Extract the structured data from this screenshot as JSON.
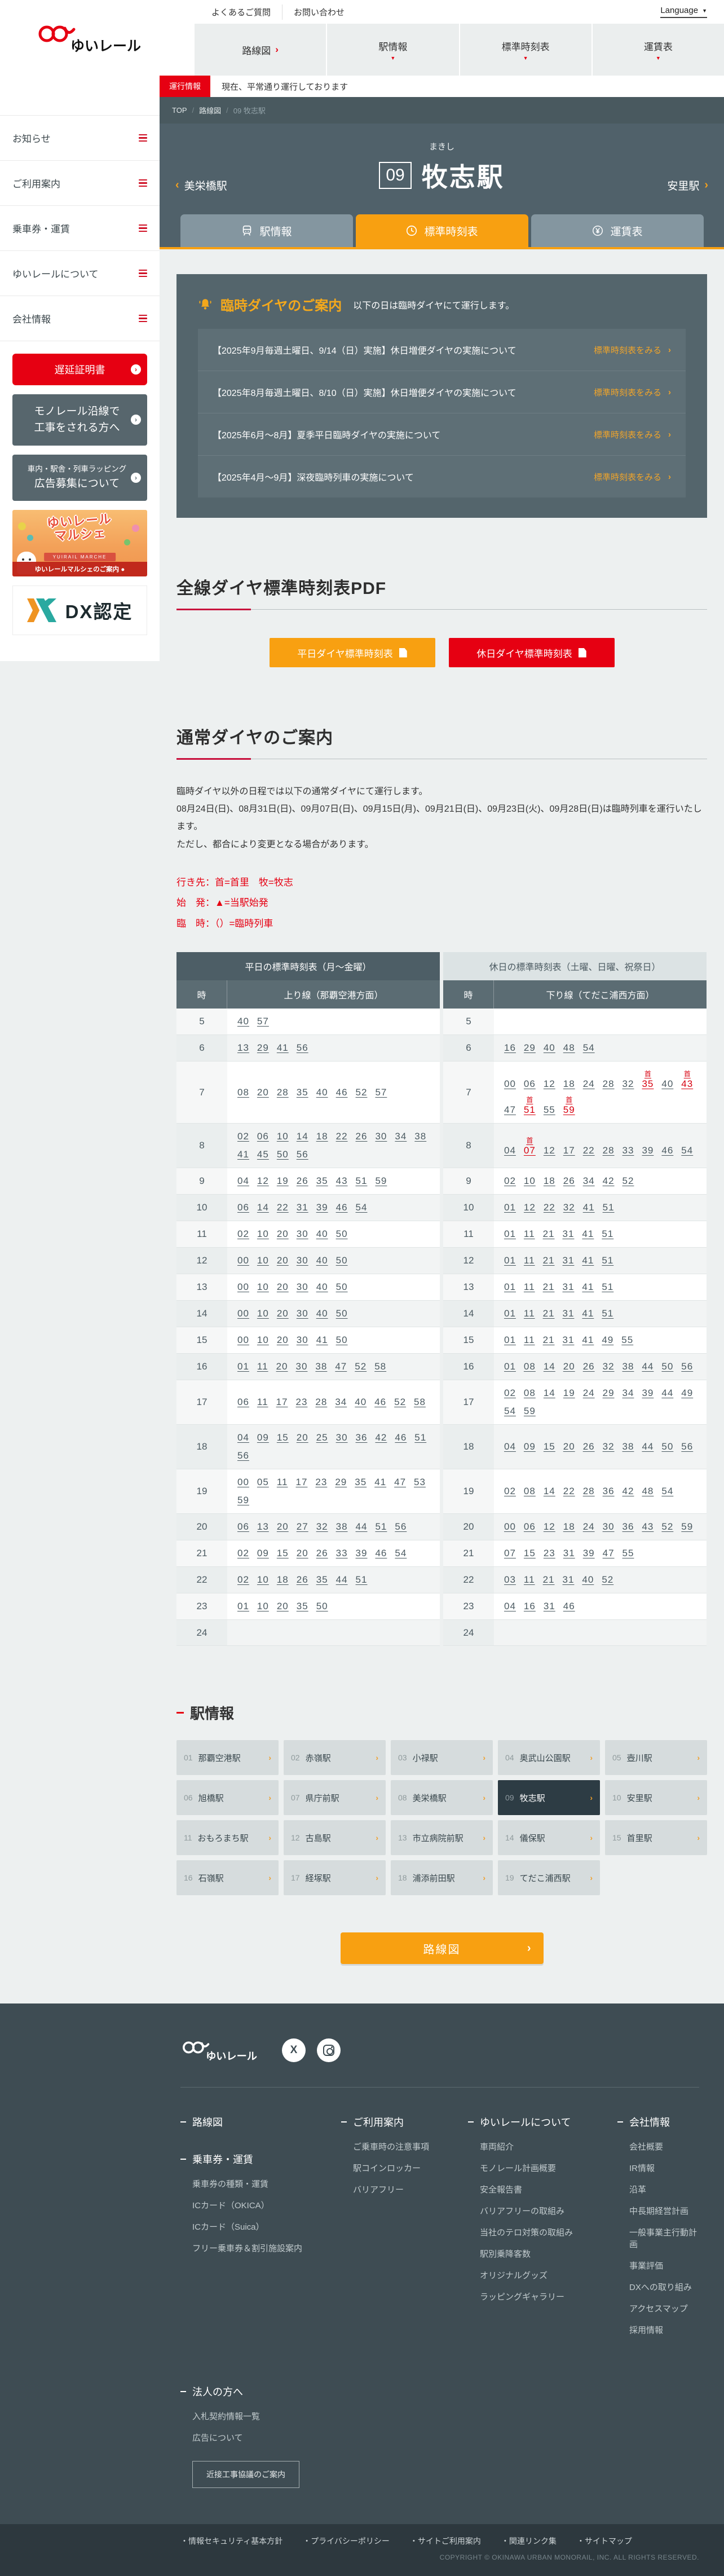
{
  "brand": {
    "logo_text": "ゆいレール",
    "accent_orange": "#f8a011",
    "brand_red": "#e60012"
  },
  "header": {
    "top_links": [
      "よくあるご質問",
      "お問い合わせ"
    ],
    "language_label": "Language",
    "nav": [
      {
        "label": "路線図",
        "type": "arrow"
      },
      {
        "label": "駅情報",
        "type": "caret"
      },
      {
        "label": "標準時刻表",
        "type": "caret"
      },
      {
        "label": "運賃表",
        "type": "caret"
      }
    ]
  },
  "status": {
    "badge": "運行情報",
    "text": "現在、平常通り運行しております"
  },
  "breadcrumb": [
    "TOP",
    "路線図",
    "09 牧志駅"
  ],
  "hero": {
    "kana": "まきし",
    "number": "09",
    "name": "牧志駅",
    "prev": "美栄橋駅",
    "next": "安里駅"
  },
  "tabs": [
    {
      "label": "駅情報",
      "icon": "train",
      "active": false
    },
    {
      "label": "標準時刻表",
      "icon": "clock",
      "active": true
    },
    {
      "label": "運賃表",
      "icon": "yen",
      "active": false
    }
  ],
  "sidebar": {
    "menu": [
      "お知らせ",
      "ご利用案内",
      "乗車券・運賃",
      "ゆいレールについて",
      "会社情報"
    ],
    "cta_red": "遅延証明書",
    "cta_dark": [
      {
        "lines": [
          "モノレール沿線で",
          "工事をされる方へ"
        ],
        "small_first": false
      },
      {
        "lines": [
          "車内・駅舎・列車ラッピング",
          "広告募集について"
        ],
        "small_first": true
      }
    ],
    "marche": {
      "line1": "ゆいレール",
      "line2": "マルシェ",
      "ribbon": "YUIRAIL MARCHE",
      "caption": "ゆいレールマルシェのご案内 ●"
    },
    "dx_label": "DX認定"
  },
  "notice": {
    "title": "臨時ダイヤのご案内",
    "subtitle": "以下の日は臨時ダイヤにて運行します。",
    "link_label": "標準時刻表をみる",
    "items": [
      "【2025年9月毎週土曜日、9/14（日）実施】休日増便ダイヤの実施について",
      "【2025年8月毎週土曜日、8/10（日）実施】休日増便ダイヤの実施について",
      "【2025年6月～8月】夏季平日臨時ダイヤの実施について",
      "【2025年4月～9月】深夜臨時列車の実施について"
    ]
  },
  "pdf": {
    "title": "全線ダイヤ標準時刻表PDF",
    "buttons": [
      {
        "label": "平日ダイヤ標準時刻表",
        "color": "#f8a011"
      },
      {
        "label": "休日ダイヤ標準時刻表",
        "color": "#e60012"
      }
    ]
  },
  "normal": {
    "title": "通常ダイヤのご案内",
    "paragraphs": [
      "臨時ダイヤ以外の日程では以下の通常ダイヤにて運行します。",
      "08月24日(日)、08月31日(日)、09月07日(日)、09月15日(月)、09月21日(日)、09月23日(火)、09月28日(日)は臨時列車を運行いたします。",
      "ただし、都合により変更となる場合があります。"
    ],
    "legend": [
      "行き先：首=首里　牧=牧志",
      "始　発：▲=当駅始発",
      "臨　時：（）=臨時列車"
    ]
  },
  "timetable": {
    "tab_weekday": "平日の標準時刻表（月～金曜）",
    "tab_holiday": "休日の標準時刻表（土曜、日曜、祝祭日）",
    "hour_label": "時",
    "up_label": "上り線（那覇空港方面）",
    "down_label": "下り線（てだこ浦西方面）",
    "rows": [
      {
        "h": "5",
        "up": [
          "40",
          "57"
        ],
        "down": []
      },
      {
        "h": "6",
        "up": [
          "13",
          "29",
          "41",
          "56"
        ],
        "down": [
          "16",
          "29",
          "40",
          "48",
          "54"
        ]
      },
      {
        "h": "7",
        "up": [
          "08",
          "20",
          "28",
          "35",
          "40",
          "46",
          "52",
          "57"
        ],
        "down": [
          "00",
          "06",
          "12",
          "18",
          "24",
          "28",
          "32",
          {
            "t": "35",
            "m": "首"
          },
          "40",
          {
            "t": "43",
            "m": "首"
          },
          "47",
          {
            "t": "51",
            "m": "首"
          },
          "55",
          {
            "t": "59",
            "m": "首"
          }
        ]
      },
      {
        "h": "8",
        "up": [
          "02",
          "06",
          "10",
          "14",
          "18",
          "22",
          "26",
          "30",
          "34",
          "38",
          "41",
          "45",
          "50",
          "56"
        ],
        "down": [
          "04",
          {
            "t": "07",
            "m": "首"
          },
          "12",
          "17",
          "22",
          "28",
          "33",
          "39",
          "46",
          "54"
        ]
      },
      {
        "h": "9",
        "up": [
          "04",
          "12",
          "19",
          "26",
          "35",
          "43",
          "51",
          "59"
        ],
        "down": [
          "02",
          "10",
          "18",
          "26",
          "34",
          "42",
          "52"
        ]
      },
      {
        "h": "10",
        "up": [
          "06",
          "14",
          "22",
          "31",
          "39",
          "46",
          "54"
        ],
        "down": [
          "01",
          "12",
          "22",
          "32",
          "41",
          "51"
        ]
      },
      {
        "h": "11",
        "up": [
          "02",
          "10",
          "20",
          "30",
          "40",
          "50"
        ],
        "down": [
          "01",
          "11",
          "21",
          "31",
          "41",
          "51"
        ]
      },
      {
        "h": "12",
        "up": [
          "00",
          "10",
          "20",
          "30",
          "40",
          "50"
        ],
        "down": [
          "01",
          "11",
          "21",
          "31",
          "41",
          "51"
        ]
      },
      {
        "h": "13",
        "up": [
          "00",
          "10",
          "20",
          "30",
          "40",
          "50"
        ],
        "down": [
          "01",
          "11",
          "21",
          "31",
          "41",
          "51"
        ]
      },
      {
        "h": "14",
        "up": [
          "00",
          "10",
          "20",
          "30",
          "40",
          "50"
        ],
        "down": [
          "01",
          "11",
          "21",
          "31",
          "41",
          "51"
        ]
      },
      {
        "h": "15",
        "up": [
          "00",
          "10",
          "20",
          "30",
          "41",
          "50"
        ],
        "down": [
          "01",
          "11",
          "21",
          "31",
          "41",
          "49",
          "55"
        ]
      },
      {
        "h": "16",
        "up": [
          "01",
          "11",
          "20",
          "30",
          "38",
          "47",
          "52",
          "58"
        ],
        "down": [
          "01",
          "08",
          "14",
          "20",
          "26",
          "32",
          "38",
          "44",
          "50",
          "56"
        ]
      },
      {
        "h": "17",
        "up": [
          "06",
          "11",
          "17",
          "23",
          "28",
          "34",
          "40",
          "46",
          "52",
          "58"
        ],
        "down": [
          "02",
          "08",
          "14",
          "19",
          "24",
          "29",
          "34",
          "39",
          "44",
          "49",
          "54",
          "59"
        ]
      },
      {
        "h": "18",
        "up": [
          "04",
          "09",
          "15",
          "20",
          "25",
          "30",
          "36",
          "42",
          "46",
          "51",
          "56"
        ],
        "down": [
          "04",
          "09",
          "15",
          "20",
          "26",
          "32",
          "38",
          "44",
          "50",
          "56"
        ]
      },
      {
        "h": "19",
        "up": [
          "00",
          "05",
          "11",
          "17",
          "23",
          "29",
          "35",
          "41",
          "47",
          "53",
          "59"
        ],
        "down": [
          "02",
          "08",
          "14",
          "22",
          "28",
          "36",
          "42",
          "48",
          "54"
        ]
      },
      {
        "h": "20",
        "up": [
          "06",
          "13",
          "20",
          "27",
          "32",
          "38",
          "44",
          "51",
          "56"
        ],
        "down": [
          "00",
          "06",
          "12",
          "18",
          "24",
          "30",
          "36",
          "43",
          "52",
          "59"
        ]
      },
      {
        "h": "21",
        "up": [
          "02",
          "09",
          "15",
          "20",
          "26",
          "33",
          "39",
          "46",
          "54"
        ],
        "down": [
          "07",
          "15",
          "23",
          "31",
          "39",
          "47",
          "55"
        ]
      },
      {
        "h": "22",
        "up": [
          "02",
          "10",
          "18",
          "26",
          "35",
          "44",
          "51"
        ],
        "down": [
          "03",
          "11",
          "21",
          "31",
          "40",
          "52"
        ]
      },
      {
        "h": "23",
        "up": [
          "01",
          "10",
          "20",
          "35",
          "50"
        ],
        "down": [
          "04",
          "16",
          "31",
          "46"
        ]
      },
      {
        "h": "24",
        "up": [],
        "down": []
      }
    ]
  },
  "stations": {
    "title": "駅情報",
    "route_button": "路線図",
    "list": [
      {
        "no": "01",
        "name": "那覇空港駅"
      },
      {
        "no": "02",
        "name": "赤嶺駅"
      },
      {
        "no": "03",
        "name": "小禄駅"
      },
      {
        "no": "04",
        "name": "奥武山公園駅"
      },
      {
        "no": "05",
        "name": "壺川駅"
      },
      {
        "no": "06",
        "name": "旭橋駅"
      },
      {
        "no": "07",
        "name": "県庁前駅"
      },
      {
        "no": "08",
        "name": "美栄橋駅"
      },
      {
        "no": "09",
        "name": "牧志駅",
        "active": true
      },
      {
        "no": "10",
        "name": "安里駅"
      },
      {
        "no": "11",
        "name": "おもろまち駅"
      },
      {
        "no": "12",
        "name": "古島駅"
      },
      {
        "no": "13",
        "name": "市立病院前駅"
      },
      {
        "no": "14",
        "name": "儀保駅"
      },
      {
        "no": "15",
        "name": "首里駅"
      },
      {
        "no": "16",
        "name": "石嶺駅"
      },
      {
        "no": "17",
        "name": "経塚駅"
      },
      {
        "no": "18",
        "name": "浦添前田駅"
      },
      {
        "no": "19",
        "name": "てだこ浦西駅"
      }
    ]
  },
  "footer": {
    "columns": [
      [
        {
          "header": "路線図",
          "items": []
        },
        {
          "header": "乗車券・運賃",
          "items": [
            "乗車券の種類・運賃",
            "ICカード（OKICA）",
            "ICカード（Suica）",
            "フリー乗車券＆割引施設案内"
          ]
        }
      ],
      [
        {
          "header": "ご利用案内",
          "items": [
            "ご乗車時の注意事項",
            "駅コインロッカー",
            "バリアフリー"
          ]
        }
      ],
      [
        {
          "header": "ゆいレールについて",
          "items": [
            "車両紹介",
            "モノレール計画概要",
            "安全報告書",
            "バリアフリーの取組み",
            "当社のテロ対策の取組み",
            "駅別乗降客数",
            "オリジナルグッズ",
            "ラッピングギャラリー"
          ]
        }
      ],
      [
        {
          "header": "会社情報",
          "items": [
            "会社概要",
            "IR情報",
            "沿革",
            "中長期経営計画",
            "一般事業主行動計画",
            "事業評価",
            "DXへの取り組み",
            "アクセスマップ",
            "採用情報"
          ]
        }
      ]
    ],
    "corporate": {
      "header": "法人の方へ",
      "items": [
        "入札契約情報一覧",
        "広告について"
      ],
      "button": "近接工事協議のご案内"
    }
  },
  "bottom": {
    "links": [
      "情報セキュリティ基本方針",
      "プライバシーポリシー",
      "サイトご利用案内",
      "関連リンク集",
      "サイトマップ"
    ],
    "copyright": "COPYRIGHT © OKINAWA URBAN MONORAIL, INC. ALL RIGHTS RESERVED."
  }
}
